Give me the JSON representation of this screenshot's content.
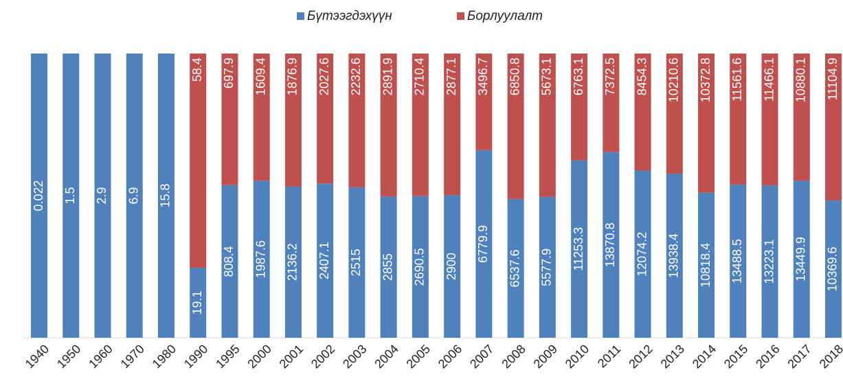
{
  "chart_data": {
    "type": "bar",
    "stacking": "percent",
    "categories": [
      "1940",
      "1950",
      "1960",
      "1970",
      "1980",
      "1990",
      "1995",
      "2000",
      "2001",
      "2002",
      "2003",
      "2004",
      "2005",
      "2006",
      "2007",
      "2008",
      "2009",
      "2010",
      "2011",
      "2012",
      "2013",
      "2014",
      "2015",
      "2016",
      "2017",
      "2018"
    ],
    "series": [
      {
        "name": "Бүтээгдэхүүн",
        "color": "#4f81bd",
        "values": [
          0.022,
          1.5,
          2.9,
          6.9,
          15.8,
          19.1,
          808.4,
          1987.6,
          2136.2,
          2407.1,
          2515,
          2855,
          2690.5,
          2900,
          6779.9,
          6537.6,
          5577.9,
          11253.3,
          13870.8,
          12074.2,
          13938.4,
          10818.4,
          13488.5,
          13223.1,
          13449.9,
          10369.6
        ]
      },
      {
        "name": "Борлуулалт",
        "color": "#c0504d",
        "values": [
          null,
          null,
          null,
          null,
          null,
          58.4,
          697.9,
          1609.4,
          1876.9,
          2027.6,
          2232.6,
          2891.9,
          2710.4,
          2877.1,
          3496.7,
          6850.8,
          5673.1,
          6763.1,
          7372.5,
          8454.3,
          10210.6,
          10372.8,
          11561.6,
          11466.1,
          10880.1,
          11104.9
        ]
      }
    ],
    "legend": "top"
  }
}
